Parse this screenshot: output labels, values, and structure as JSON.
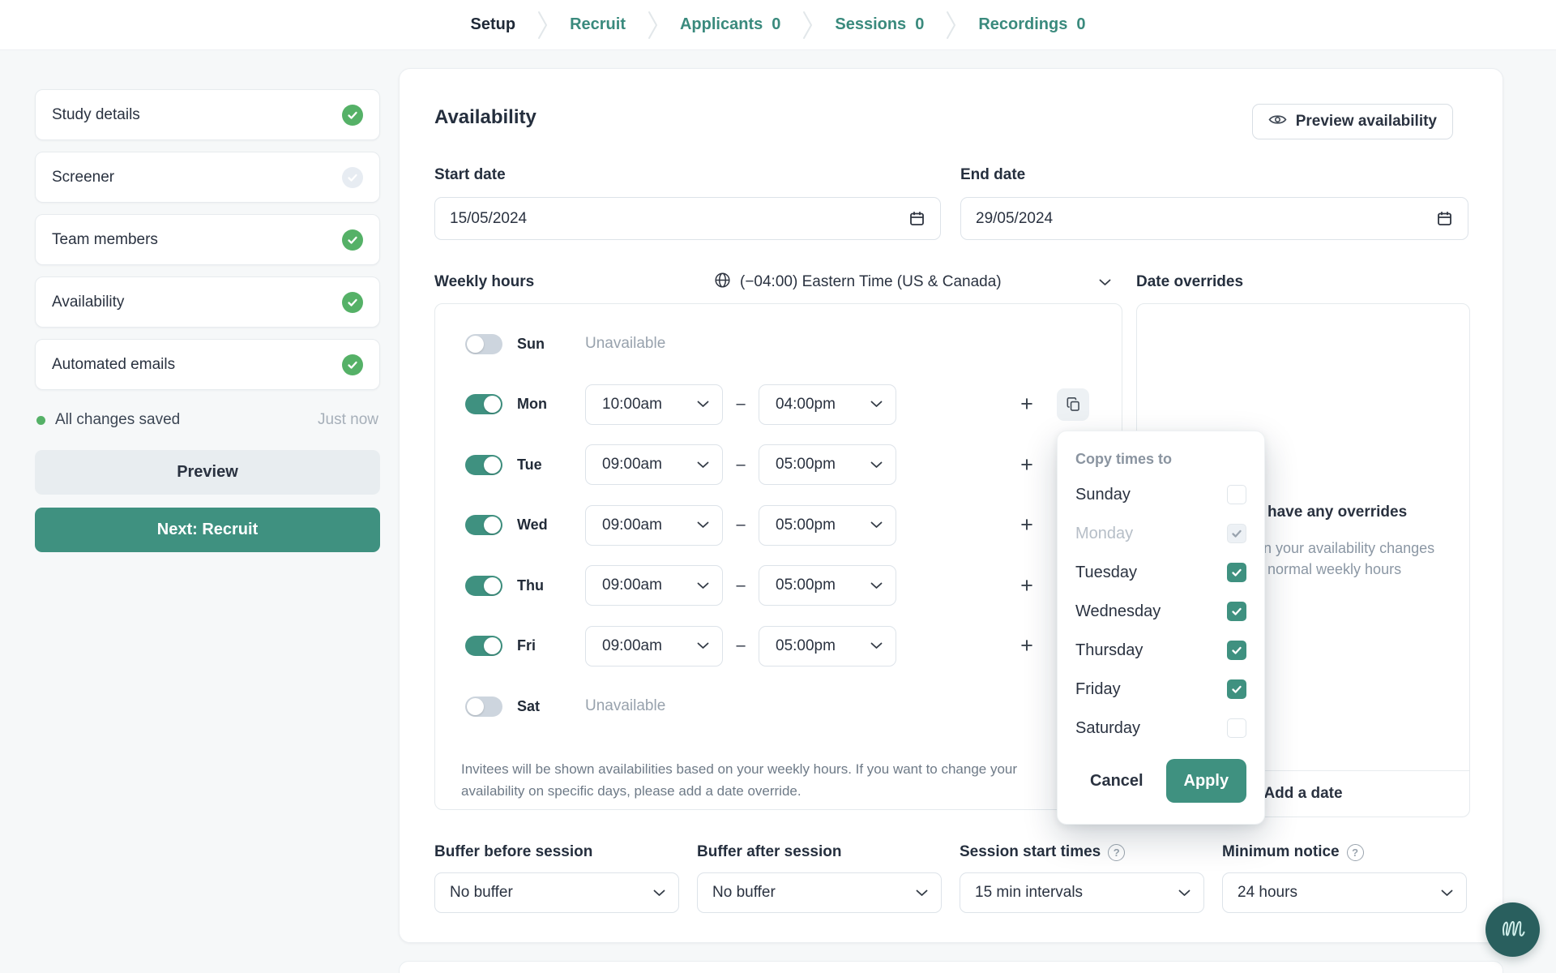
{
  "colors": {
    "accent_teal": "#3f9180",
    "success_green": "#55b167",
    "logo_teal": "#295f5e"
  },
  "topnav": {
    "items": [
      {
        "label": "Setup",
        "active": true
      },
      {
        "label": "Recruit",
        "active": false
      },
      {
        "label": "Applicants",
        "count": "0",
        "active": false
      },
      {
        "label": "Sessions",
        "count": "0",
        "active": false
      },
      {
        "label": "Recordings",
        "count": "0",
        "active": false
      }
    ]
  },
  "sidebar": {
    "steps": [
      {
        "label": "Study details",
        "status": "complete"
      },
      {
        "label": "Screener",
        "status": "incomplete"
      },
      {
        "label": "Team members",
        "status": "complete"
      },
      {
        "label": "Availability",
        "status": "complete"
      },
      {
        "label": "Automated emails",
        "status": "complete"
      }
    ],
    "saved_status": "All changes saved",
    "saved_time": "Just now",
    "preview_label": "Preview",
    "next_label": "Next: Recruit"
  },
  "main": {
    "title": "Availability",
    "preview_availability_label": "Preview availability",
    "start_date": {
      "label": "Start date",
      "value": "15/05/2024"
    },
    "end_date": {
      "label": "End date",
      "value": "29/05/2024"
    },
    "weekly": {
      "label": "Weekly hours",
      "timezone": "(−04:00) Eastern Time (US & Canada)",
      "days": [
        {
          "day": "Sun",
          "enabled": false,
          "status": "Unavailable"
        },
        {
          "day": "Mon",
          "enabled": true,
          "start": "10:00am",
          "end": "04:00pm",
          "copy_active": true
        },
        {
          "day": "Tue",
          "enabled": true,
          "start": "09:00am",
          "end": "05:00pm",
          "copy_active": false
        },
        {
          "day": "Wed",
          "enabled": true,
          "start": "09:00am",
          "end": "05:00pm",
          "copy_active": false
        },
        {
          "day": "Thu",
          "enabled": true,
          "start": "09:00am",
          "end": "05:00pm",
          "copy_active": false
        },
        {
          "day": "Fri",
          "enabled": true,
          "start": "09:00am",
          "end": "05:00pm",
          "copy_active": false
        },
        {
          "day": "Sat",
          "enabled": false,
          "status": "Unavailable"
        }
      ],
      "note_line1": "Invitees will be shown availabilities based on your weekly hours. If you want to change your",
      "note_line2": "availability on specific days, please add a date override."
    },
    "overrides": {
      "label": "Date overrides",
      "empty_fragment_bold": "have any overrides",
      "empty_fragment_line1": "n your availability changes",
      "empty_fragment_line2": "normal weekly hours",
      "add_label": "Add a date"
    },
    "settings": [
      {
        "label": "Buffer before session",
        "value": "No buffer",
        "help": false
      },
      {
        "label": "Buffer after session",
        "value": "No buffer",
        "help": false
      },
      {
        "label": "Session start times",
        "value": "15 min intervals",
        "help": true
      },
      {
        "label": "Minimum notice",
        "value": "24 hours",
        "help": true
      }
    ]
  },
  "popover": {
    "title": "Copy times to",
    "days": [
      {
        "label": "Sunday",
        "checked": false,
        "disabled": false
      },
      {
        "label": "Monday",
        "checked": true,
        "disabled": true
      },
      {
        "label": "Tuesday",
        "checked": true,
        "disabled": false
      },
      {
        "label": "Wednesday",
        "checked": true,
        "disabled": false
      },
      {
        "label": "Thursday",
        "checked": true,
        "disabled": false
      },
      {
        "label": "Friday",
        "checked": true,
        "disabled": false
      },
      {
        "label": "Saturday",
        "checked": false,
        "disabled": false
      }
    ],
    "cancel_label": "Cancel",
    "apply_label": "Apply"
  }
}
